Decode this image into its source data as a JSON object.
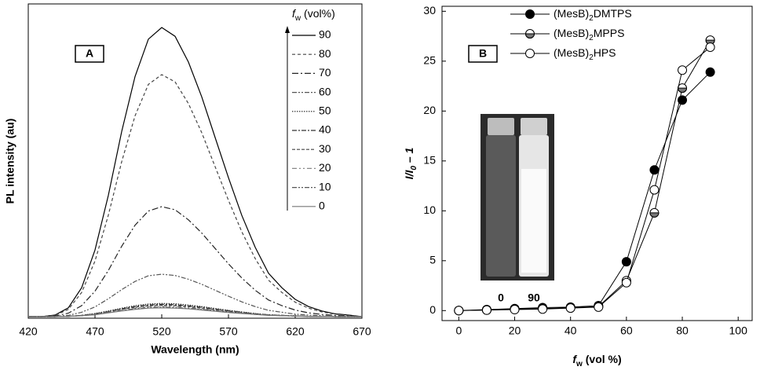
{
  "chart_data": [
    {
      "type": "line",
      "panel_label": "A",
      "x_label": "Wavelength (nm)",
      "y_label": "PL intensity (au)",
      "legend_title": "fw (vol%)",
      "xlim": [
        420,
        670
      ],
      "xticks": [
        420,
        470,
        520,
        570,
        620,
        670
      ],
      "ylim": [
        0,
        100
      ],
      "x": [
        420,
        430,
        440,
        450,
        460,
        470,
        480,
        490,
        500,
        510,
        520,
        530,
        540,
        550,
        560,
        570,
        580,
        590,
        600,
        610,
        620,
        630,
        640,
        650,
        660,
        670
      ],
      "series": [
        {
          "name": "90",
          "color": "#000000",
          "dash": "none",
          "values": [
            0.5,
            0.5,
            1.0,
            3.3,
            9.7,
            21.7,
            39.1,
            59.4,
            76.9,
            88.8,
            92.5,
            89.7,
            81.5,
            70.4,
            57.5,
            44.7,
            32.7,
            22.6,
            14.3,
            9.7,
            6.0,
            3.7,
            2.3,
            1.4,
            1.0,
            0.5
          ]
        },
        {
          "name": "80",
          "color": "#444444",
          "dash": "4,3",
          "values": [
            0.5,
            0.5,
            0.9,
            2.8,
            8.2,
            18.2,
            32.8,
            49.8,
            64.4,
            74.4,
            77.5,
            75.2,
            68.3,
            59.0,
            48.2,
            37.5,
            27.5,
            19.0,
            12.1,
            8.2,
            5.1,
            3.2,
            2.0,
            1.3,
            0.9,
            0.5
          ]
        },
        {
          "name": "70",
          "color": "#222222",
          "dash": "8,3,2,3",
          "values": [
            0.5,
            0.5,
            0.7,
            1.6,
            4.0,
            8.6,
            15.2,
            22.9,
            29.6,
            34.1,
            35.5,
            34.5,
            31.3,
            27.1,
            22.2,
            17.3,
            12.8,
            8.9,
            5.8,
            4.0,
            2.6,
            1.7,
            1.2,
            0.9,
            0.7,
            0.5
          ]
        },
        {
          "name": "60",
          "color": "#555555",
          "dash": "6,2,2,2,2,2",
          "values": [
            0.5,
            0.5,
            0.6,
            0.9,
            1.9,
            3.6,
            6.2,
            9.1,
            11.7,
            13.5,
            14.0,
            13.6,
            12.4,
            10.8,
            8.9,
            7.0,
            5.2,
            3.7,
            2.5,
            1.9,
            1.3,
            1.0,
            0.8,
            0.6,
            0.6,
            0.5
          ]
        },
        {
          "name": "50",
          "color": "#222222",
          "dash": "1.5,1.5",
          "values": [
            0.5,
            0.5,
            0.5,
            0.6,
            0.9,
            1.5,
            2.3,
            3.2,
            4.0,
            4.5,
            4.7,
            4.6,
            4.2,
            3.7,
            3.1,
            2.5,
            2.0,
            1.5,
            1.1,
            0.9,
            0.8,
            0.6,
            0.6,
            0.5,
            0.5,
            0.5
          ]
        },
        {
          "name": "40",
          "color": "#333333",
          "dash": "6,2,2,2",
          "values": [
            0.5,
            0.5,
            0.5,
            0.6,
            0.9,
            1.4,
            2.1,
            3.0,
            3.7,
            4.2,
            4.4,
            4.3,
            3.9,
            3.5,
            2.9,
            2.4,
            1.9,
            1.4,
            1.1,
            0.9,
            0.7,
            0.6,
            0.6,
            0.5,
            0.5,
            0.5
          ]
        },
        {
          "name": "30",
          "color": "#444444",
          "dash": "4,2",
          "values": [
            0.5,
            0.5,
            0.5,
            0.6,
            0.9,
            1.3,
            2.0,
            2.8,
            3.5,
            4.0,
            4.1,
            4.0,
            3.7,
            3.2,
            2.7,
            2.2,
            1.8,
            1.4,
            1.0,
            0.9,
            0.7,
            0.6,
            0.6,
            0.5,
            0.5,
            0.5
          ]
        },
        {
          "name": "20",
          "color": "#888888",
          "dash": "6,3,2,3,2,3",
          "values": [
            0.5,
            0.5,
            0.5,
            0.6,
            0.8,
            1.3,
            1.9,
            2.6,
            3.2,
            3.7,
            3.8,
            3.7,
            3.4,
            3.0,
            2.5,
            2.1,
            1.7,
            1.3,
            1.0,
            0.8,
            0.7,
            0.6,
            0.6,
            0.5,
            0.5,
            0.5
          ]
        },
        {
          "name": "10",
          "color": "#555555",
          "dash": "6,2,2,2,2,2",
          "values": [
            0.5,
            0.5,
            0.5,
            0.6,
            0.8,
            1.2,
            1.8,
            2.4,
            3.0,
            3.4,
            3.5,
            3.4,
            3.1,
            2.8,
            2.4,
            1.9,
            1.6,
            1.2,
            1.0,
            0.8,
            0.7,
            0.6,
            0.6,
            0.5,
            0.5,
            0.5
          ]
        },
        {
          "name": "0",
          "color": "#777777",
          "dash": "none",
          "values": [
            0.5,
            0.5,
            0.5,
            0.6,
            0.8,
            1.1,
            1.7,
            2.3,
            2.8,
            3.2,
            3.3,
            3.2,
            3.0,
            2.6,
            2.2,
            1.8,
            1.5,
            1.2,
            0.9,
            0.8,
            0.7,
            0.6,
            0.6,
            0.5,
            0.5,
            0.5
          ]
        }
      ]
    },
    {
      "type": "line",
      "panel_label": "B",
      "x_label": "fw (vol %)",
      "y_label": "I/I0 – 1",
      "xlim": [
        -6,
        105
      ],
      "xticks": [
        0,
        20,
        40,
        60,
        80,
        100
      ],
      "ylim": [
        -1,
        30.5
      ],
      "yticks": [
        0,
        5,
        10,
        15,
        20,
        25,
        30
      ],
      "x": [
        0,
        10,
        20,
        30,
        40,
        50,
        60,
        70,
        80,
        90
      ],
      "series": [
        {
          "name": "(MesB)2DMTPS",
          "color": "#000000",
          "marker": "filled",
          "values": [
            0,
            0.1,
            0.2,
            0.3,
            0.35,
            0.5,
            4.9,
            14.1,
            21.1,
            23.9
          ]
        },
        {
          "name": "(MesB)2MPPS",
          "color": "#000000",
          "marker": "half",
          "values": [
            0,
            0.05,
            0.15,
            0.2,
            0.3,
            0.4,
            3.0,
            9.8,
            22.3,
            27.1
          ]
        },
        {
          "name": "(MesB)2HPS",
          "color": "#000000",
          "marker": "open",
          "values": [
            0,
            0.05,
            0.1,
            0.15,
            0.25,
            0.35,
            2.8,
            12.1,
            24.1,
            26.4
          ]
        }
      ],
      "inset_labels": [
        "0",
        "90"
      ]
    }
  ]
}
